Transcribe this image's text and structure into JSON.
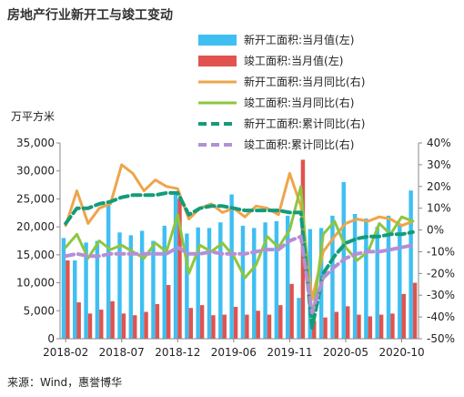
{
  "header": {
    "title": "房地产行业新开工与竣工变动"
  },
  "footer": {
    "source": "来源：Wind，惠誉博华"
  },
  "chart_data": {
    "type": "bar",
    "ylabel_left": "万平方米",
    "ylim_left": [
      0,
      35000
    ],
    "ylim_right": [
      -50,
      40
    ],
    "left_ticks": [
      "0",
      "5,000",
      "10,000",
      "15,000",
      "20,000",
      "25,000",
      "30,000",
      "35,000"
    ],
    "right_ticks": [
      "-50%",
      "-40%",
      "-30%",
      "-20%",
      "-10%",
      "0%",
      "10%",
      "20%",
      "30%",
      "40%"
    ],
    "x_tick_labels": [
      "2018-02",
      "2018-07",
      "2018-12",
      "2019-06",
      "2019-11",
      "2020-05",
      "2020-10"
    ],
    "categories": [
      "2018-02",
      "2018-03",
      "2018-04",
      "2018-05",
      "2018-06",
      "2018-07",
      "2018-08",
      "2018-09",
      "2018-10",
      "2018-11",
      "2018-12",
      "2019-02",
      "2019-03",
      "2019-04",
      "2019-05",
      "2019-06",
      "2019-07",
      "2019-08",
      "2019-09",
      "2019-10",
      "2019-11",
      "2019-12",
      "2020-02",
      "2020-03",
      "2020-04",
      "2020-05",
      "2020-06",
      "2020-07",
      "2020-08",
      "2020-09",
      "2020-10",
      "2020-11"
    ],
    "legend": [
      {
        "key": "new_area",
        "label": "新开工面积:当月值(左)",
        "kind": "bar",
        "color": "#3fbff2"
      },
      {
        "key": "comp_area",
        "label": "竣工面积:当月值(左)",
        "kind": "bar",
        "color": "#e0534e"
      },
      {
        "key": "new_yoy",
        "label": "新开工面积:当月同比(右)",
        "kind": "line",
        "color": "#eea54a"
      },
      {
        "key": "comp_yoy",
        "label": "竣工面积:当月同比(右)",
        "kind": "line",
        "color": "#8dc63f"
      },
      {
        "key": "new_cum",
        "label": "新开工面积:累计同比(右)",
        "kind": "dash",
        "color": "#149c7a"
      },
      {
        "key": "comp_cum",
        "label": "竣工面积:累计同比(右)",
        "kind": "dash",
        "color": "#b48fd6"
      }
    ],
    "series": [
      {
        "name": "新开工面积:当月值(左)",
        "axis": "left",
        "values": [
          18000,
          14000,
          17200,
          17500,
          24000,
          19000,
          18500,
          19300,
          17500,
          20200,
          26000,
          18800,
          19900,
          19800,
          20800,
          25800,
          20200,
          19800,
          20800,
          21000,
          22000,
          7300,
          19600,
          19800,
          22000,
          28000,
          22300,
          21500,
          20000,
          22000,
          20600,
          26500
        ]
      },
      {
        "name": "竣工面积:当月值(左)",
        "axis": "left",
        "values": [
          14000,
          6500,
          4500,
          5200,
          6700,
          4500,
          4200,
          4800,
          6200,
          9600,
          25000,
          5500,
          6000,
          4200,
          4300,
          5700,
          4300,
          5000,
          4300,
          6000,
          9800,
          32000,
          3200,
          3800,
          4800,
          5800,
          4300,
          4000,
          4300,
          4500,
          8000,
          10000
        ]
      },
      {
        "name": "新开工面积:当月同比(右)",
        "axis": "right",
        "values": [
          2,
          18,
          3,
          10,
          12,
          30,
          26,
          18,
          23,
          20,
          19,
          5,
          10,
          12,
          8,
          10,
          6,
          11,
          10,
          7,
          26,
          11,
          -32,
          -10,
          -3,
          3,
          5,
          4,
          6,
          5,
          2,
          4
        ]
      },
      {
        "name": "竣工面积:当月同比(右)",
        "axis": "right",
        "values": [
          -8,
          -2,
          -13,
          -5,
          -9,
          -7,
          -10,
          -13,
          -6,
          -10,
          7,
          -20,
          -7,
          -10,
          -6,
          -12,
          -22,
          -16,
          -3,
          -8,
          0,
          20,
          -43,
          -2,
          4,
          -8,
          -14,
          -10,
          3,
          -2,
          6,
          4
        ]
      },
      {
        "name": "新开工面积:累计同比(右)",
        "axis": "right",
        "values": [
          3,
          10,
          10,
          12,
          13,
          15,
          16,
          16,
          16,
          17,
          17,
          7,
          10,
          11,
          11,
          10,
          9,
          9,
          9,
          9,
          8,
          8,
          -45,
          -20,
          -12,
          -6,
          -4,
          -3,
          -3,
          -2,
          -2,
          -1
        ]
      },
      {
        "name": "竣工面积:累计同比(右)",
        "axis": "right",
        "values": [
          -12,
          -11,
          -12,
          -12,
          -11,
          -11,
          -11,
          -11,
          -11,
          -11,
          -8,
          -11,
          -11,
          -10,
          -11,
          -11,
          -11,
          -10,
          -9,
          -9,
          -5,
          -3,
          -38,
          -22,
          -17,
          -13,
          -11,
          -10,
          -10,
          -9,
          -8,
          -7
        ]
      }
    ]
  }
}
